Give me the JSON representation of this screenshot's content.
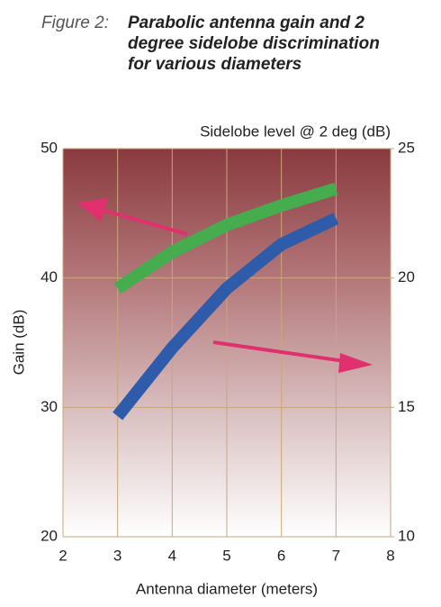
{
  "chart_data": {
    "type": "line",
    "title_prefix": "Figure 2:",
    "title": "Parabolic antenna gain and 2 degree sidelobe discrimination for various diameters",
    "xlabel": "Antenna diameter (meters)",
    "ylabel": "Gain (dB)",
    "y2label": "Sidelobe level @ 2 deg (dB)",
    "x": [
      3,
      4,
      5,
      6,
      7
    ],
    "series": [
      {
        "color": "#45ad4e",
        "values": [
          39.2,
          42.0,
          44.1,
          45.6,
          46.9
        ]
      },
      {
        "color": "#2f5bab",
        "axis": "y2",
        "values": [
          14.66,
          17.3,
          19.6,
          21.3,
          22.3
        ]
      }
    ],
    "xlim": [
      2,
      8
    ],
    "xticks": [
      2,
      3,
      4,
      5,
      6,
      7,
      8
    ],
    "ylim": [
      20,
      50
    ],
    "yticks": [
      20,
      30,
      40,
      50
    ],
    "y2lim": [
      10,
      25
    ],
    "y2ticks": [
      10,
      15,
      20,
      25
    ],
    "grid": true
  }
}
